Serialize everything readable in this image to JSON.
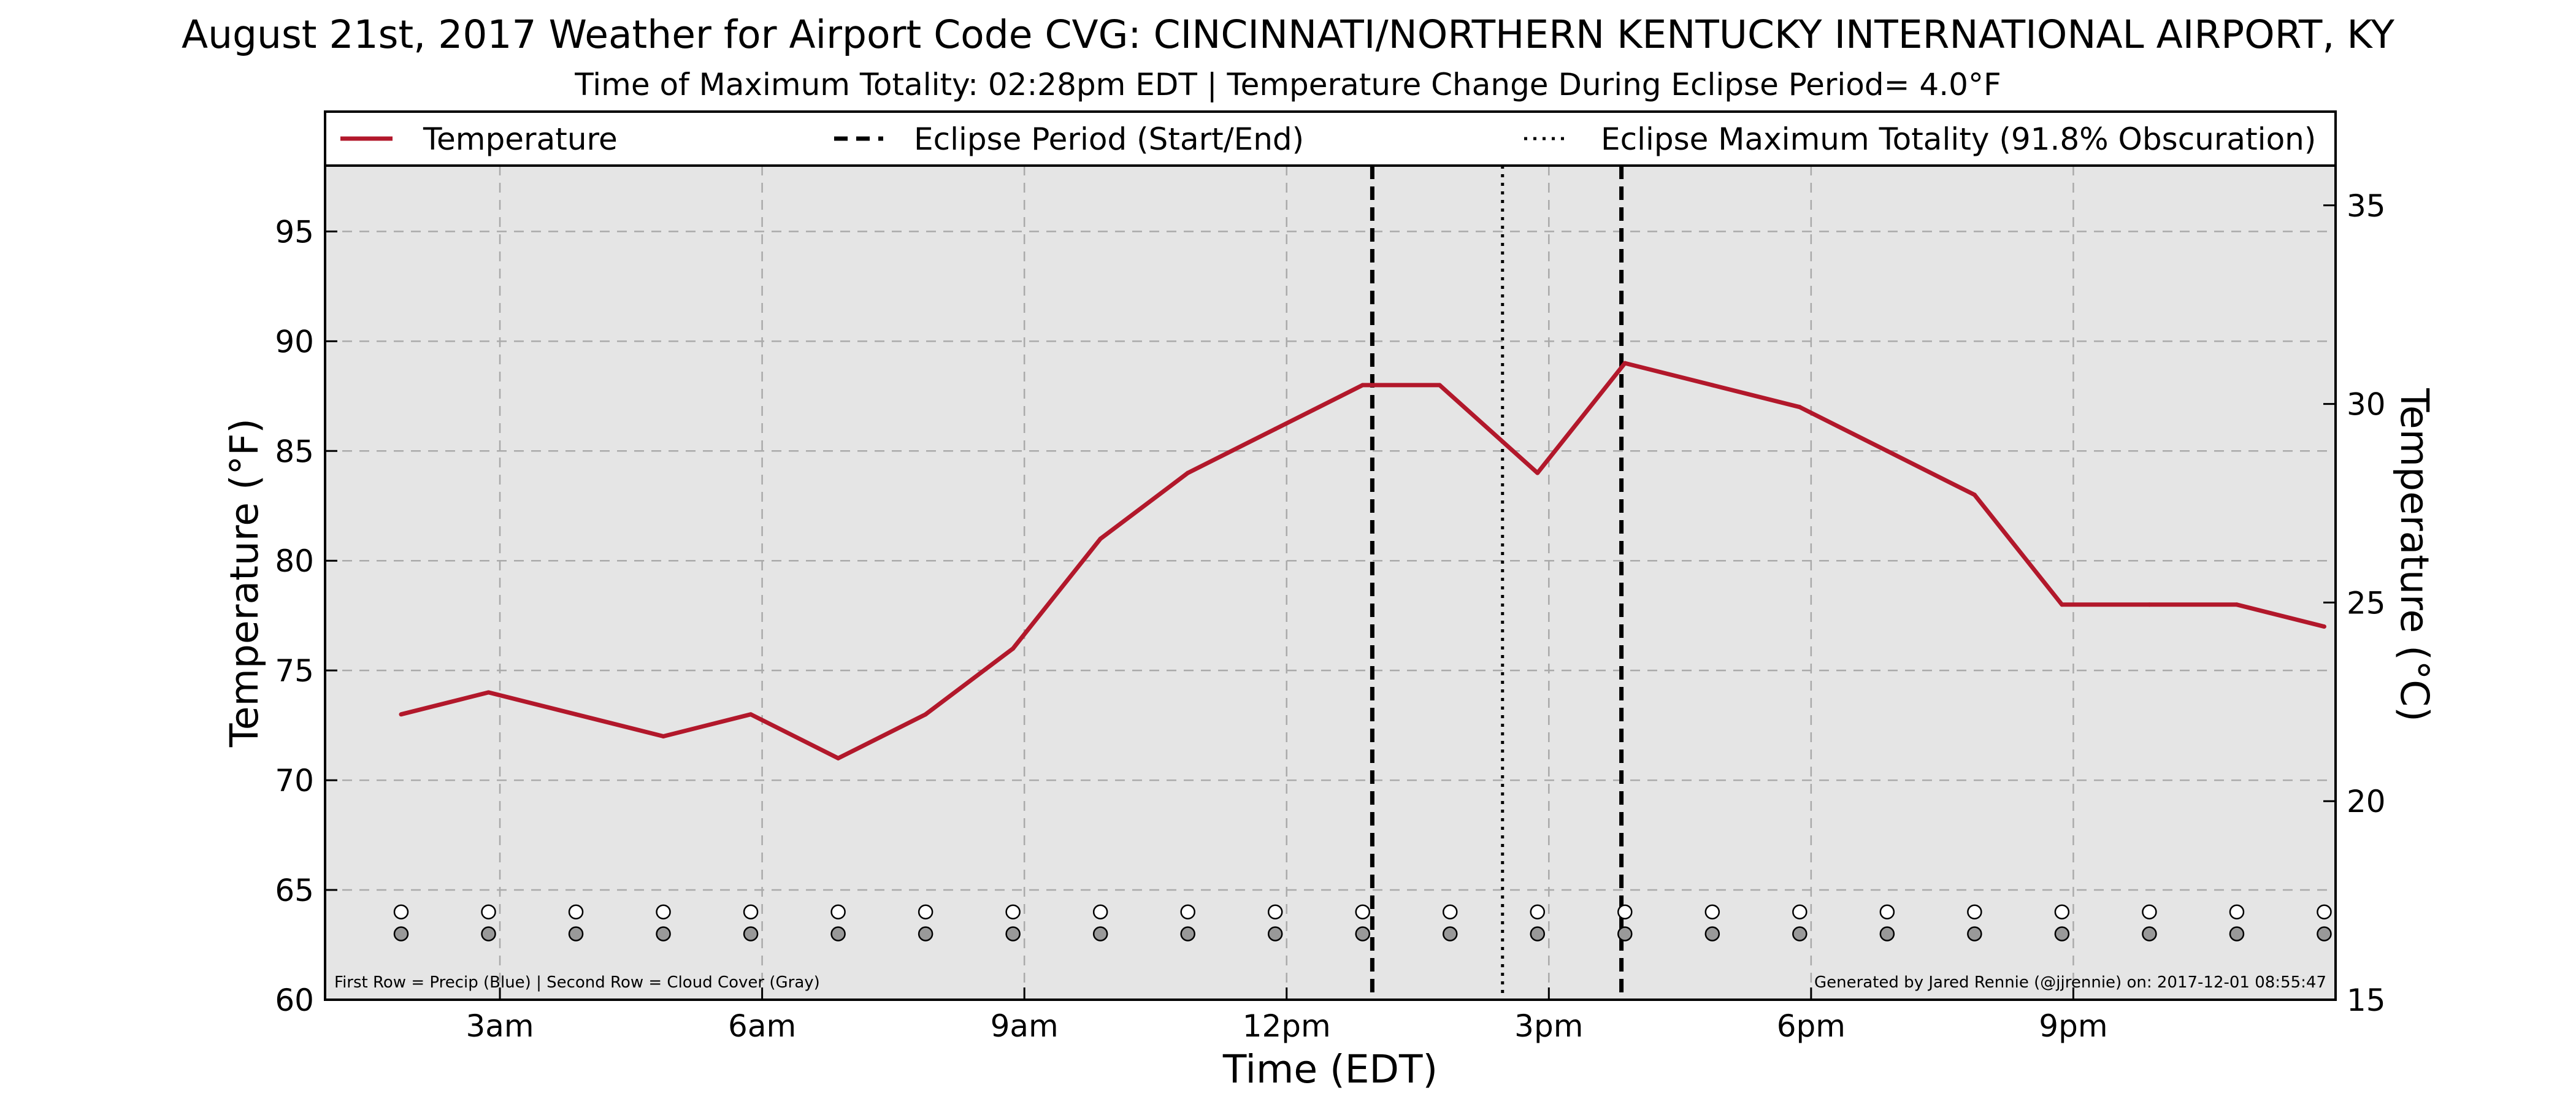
{
  "chart_data": {
    "type": "line",
    "title": "August 21st, 2017 Weather for Airport Code CVG: CINCINNATI/NORTHERN KENTUCKY INTERNATIONAL AIRPORT, KY",
    "subtitle": "Time of Maximum Totality: 02:28pm EDT | Temperature Change During Eclipse Period= 4.0°F",
    "xlabel": "Time (EDT)",
    "ylabel": "Temperature (°F)",
    "ylabel_right": "Temperature (°C)",
    "x_unit": "hours after midnight EDT",
    "xlim": [
      1,
      24
    ],
    "ylim": [
      60,
      98
    ],
    "y2lim": [
      15,
      36
    ],
    "x_ticks": [
      {
        "x": 3,
        "label": "3am"
      },
      {
        "x": 6,
        "label": "6am"
      },
      {
        "x": 9,
        "label": "9am"
      },
      {
        "x": 12,
        "label": "12pm"
      },
      {
        "x": 15,
        "label": "3pm"
      },
      {
        "x": 18,
        "label": "6pm"
      },
      {
        "x": 21,
        "label": "9pm"
      }
    ],
    "y_ticks": [
      60,
      65,
      70,
      75,
      80,
      85,
      90,
      95
    ],
    "y2_ticks": [
      15,
      20,
      25,
      30,
      35
    ],
    "grid": true,
    "legend": [
      {
        "label": "Temperature",
        "style": "solid",
        "color": "#b2182b"
      },
      {
        "label": "Eclipse Period (Start/End)",
        "style": "dashed",
        "color": "#000000"
      },
      {
        "label": "Eclipse Maximum Totality (91.8% Obscuration)",
        "style": "dotted",
        "color": "#000000"
      }
    ],
    "legend_placement": "top",
    "series": [
      {
        "name": "Temperature",
        "color": "#b2182b",
        "x": [
          1.87,
          2.87,
          3.87,
          4.87,
          5.87,
          6.87,
          7.87,
          8.87,
          9.87,
          10.87,
          11.87,
          12.87,
          13.75,
          14.87,
          15.87,
          16.87,
          17.87,
          18.87,
          19.87,
          20.87,
          21.87,
          22.87,
          23.87
        ],
        "values": [
          73,
          74,
          73,
          72,
          73,
          71,
          73,
          76,
          81,
          84,
          86,
          88,
          88,
          84,
          89,
          88,
          87,
          85,
          83,
          78,
          78,
          78,
          77
        ]
      }
    ],
    "eclipse_start": 12.98,
    "eclipse_end": 15.83,
    "eclipse_max": 14.47,
    "marker_rows": {
      "precip": {
        "y": 64,
        "color": "#ffffff",
        "x": [
          1.87,
          2.87,
          3.87,
          4.87,
          5.87,
          6.87,
          7.87,
          8.87,
          9.87,
          10.87,
          11.87,
          12.87,
          13.87,
          14.87,
          15.87,
          16.87,
          17.87,
          18.87,
          19.87,
          20.87,
          21.87,
          22.87,
          23.87
        ]
      },
      "cloud": {
        "y": 63,
        "color": "#999999",
        "x": [
          1.87,
          2.87,
          3.87,
          4.87,
          5.87,
          6.87,
          7.87,
          8.87,
          9.87,
          10.87,
          11.87,
          12.87,
          13.87,
          14.87,
          15.87,
          16.87,
          17.87,
          18.87,
          19.87,
          20.87,
          21.87,
          22.87,
          23.87
        ]
      }
    },
    "footnote_left": "First Row = Precip (Blue) | Second Row = Cloud Cover (Gray)",
    "footnote_right": "Generated by Jared Rennie (@jjrennie) on: 2017-12-01 08:55:47"
  }
}
